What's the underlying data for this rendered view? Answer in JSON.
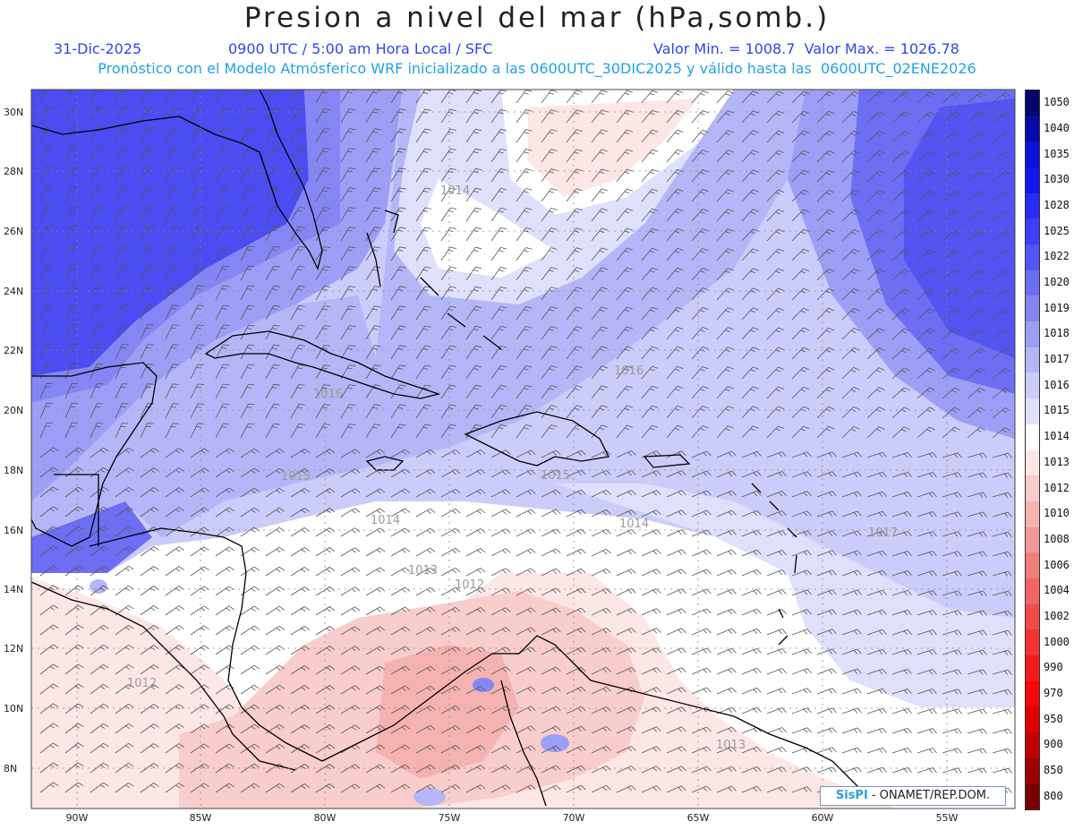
{
  "header": {
    "title": "Presion a nivel del mar (hPa,somb.)",
    "date": "31-Dic-2025",
    "time": "0900 UTC / 5:00 am Hora Local / SFC",
    "minmax": "Valor Min. = 1008.7  Valor Max. = 1026.78",
    "forecast": "Pronóstico con el Modelo Atmósferico WRF inicializado a las 0600UTC_30DIC2025 y válido hasta las  0600UTC_02ENE2026"
  },
  "map": {
    "lat_labels": [
      "30N",
      "28N",
      "26N",
      "24N",
      "22N",
      "20N",
      "18N",
      "16N",
      "14N",
      "12N",
      "10N",
      "8N"
    ],
    "lon_labels": [
      "90W",
      "85W",
      "80W",
      "75W",
      "70W",
      "65W",
      "60W",
      "55W"
    ],
    "contour_labels": [
      "1014",
      "1016",
      "1016",
      "1015",
      "1015",
      "1014",
      "1014",
      "1017",
      "1013",
      "1012",
      "1012",
      "1013"
    ]
  },
  "legend": {
    "levels": [
      "1050",
      "1040",
      "1035",
      "1030",
      "1028",
      "1025",
      "1022",
      "1020",
      "1019",
      "1018",
      "1017",
      "1016",
      "1015",
      "1014",
      "1013",
      "1012",
      "1010",
      "1008",
      "1006",
      "1004",
      "1002",
      "1000",
      "990",
      "970",
      "950",
      "900",
      "850",
      "800"
    ],
    "colors": [
      "#05056e",
      "#0a0aa8",
      "#0f10d9",
      "#1515f0",
      "#2a2bf2",
      "#3d3ef5",
      "#5555f3",
      "#6d6ef4",
      "#8586f4",
      "#9d9ef6",
      "#b5b6f8",
      "#cbccf9",
      "#dfe0fb",
      "#ffffff",
      "#fde7e6",
      "#f8cdcc",
      "#f4b3b1",
      "#f39a98",
      "#f17f7d",
      "#f06664",
      "#ef4c4a",
      "#ef3432",
      "#f01b1b",
      "#f70707",
      "#df0000",
      "#c00000",
      "#9e0000",
      "#7a0000"
    ]
  },
  "credit": {
    "brand": "SisPI",
    "org": " - ONAMET/REP.DOM."
  }
}
